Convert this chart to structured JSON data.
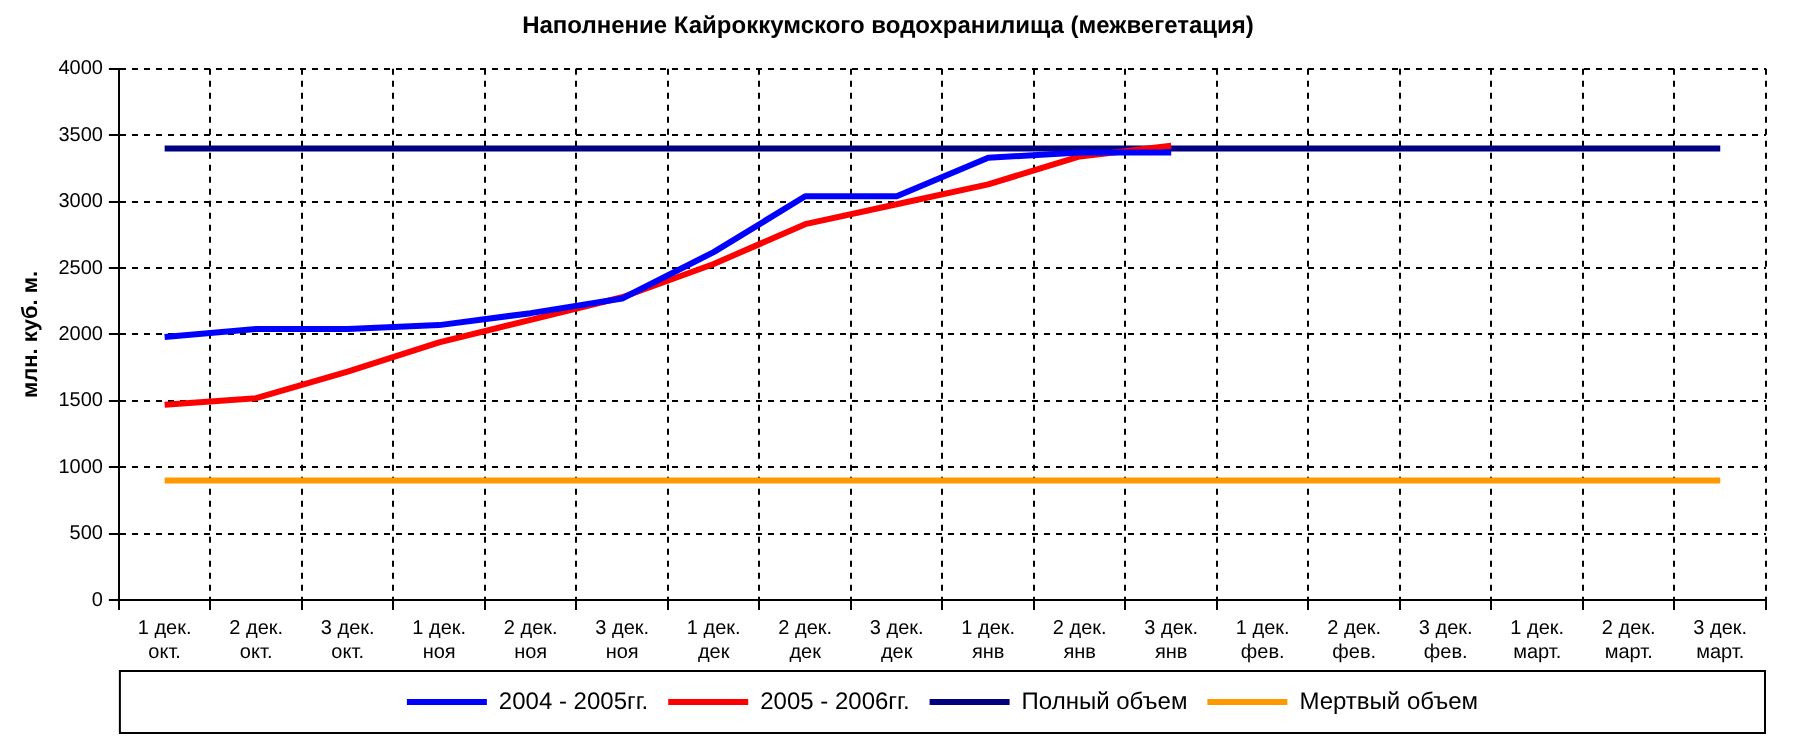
{
  "chart_data": {
    "type": "line",
    "title": "Наполнение Кайроккумского водохранилища (межвегетация)",
    "ylabel": "млн. куб. м.",
    "categories": [
      "1 дек.\nокт.",
      "2 дек.\nокт.",
      "3 дек.\nокт.",
      "1 дек.\nноя",
      "2 дек.\nноя",
      "3 дек.\nноя",
      "1 дек.\nдек",
      "2 дек.\nдек",
      "3 дек.\nдек",
      "1 дек.\nянв",
      "2 дек.\nянв",
      "3 дек.\nянв",
      "1 дек.\nфев.",
      "2 дек.\nфев.",
      "3 дек.\nфев.",
      "1 дек.\nмарт.",
      "2 дек.\nмарт.",
      "3 дек.\nмарт."
    ],
    "series": [
      {
        "name": "2004 - 2005гг.",
        "color": "#0000ff",
        "values": [
          1980,
          2040,
          2040,
          2070,
          2160,
          2270,
          2620,
          3040,
          3040,
          3330,
          3370,
          3370,
          null,
          null,
          null,
          null,
          null,
          null
        ]
      },
      {
        "name": "2005 - 2006гг.",
        "color": "#ff0000",
        "values": [
          1470,
          1520,
          1720,
          1940,
          2110,
          2280,
          2530,
          2830,
          2980,
          3130,
          3340,
          3420,
          null,
          null,
          null,
          null,
          null,
          null
        ]
      },
      {
        "name": "Полный объем",
        "color": "#000080",
        "values": [
          3400,
          3400,
          3400,
          3400,
          3400,
          3400,
          3400,
          3400,
          3400,
          3400,
          3400,
          3400,
          3400,
          3400,
          3400,
          3400,
          3400,
          3400
        ]
      },
      {
        "name": "Мертвый объем",
        "color": "#ff9900",
        "values": [
          900,
          900,
          900,
          900,
          900,
          900,
          900,
          900,
          900,
          900,
          900,
          900,
          900,
          900,
          900,
          900,
          900,
          900
        ]
      }
    ],
    "ylim": [
      0,
      4000
    ],
    "yticks": [
      0,
      500,
      1000,
      1500,
      2000,
      2500,
      3000,
      3500,
      4000
    ],
    "grid": true,
    "legend": "bottom",
    "marker": "none",
    "line_style": "solid"
  }
}
